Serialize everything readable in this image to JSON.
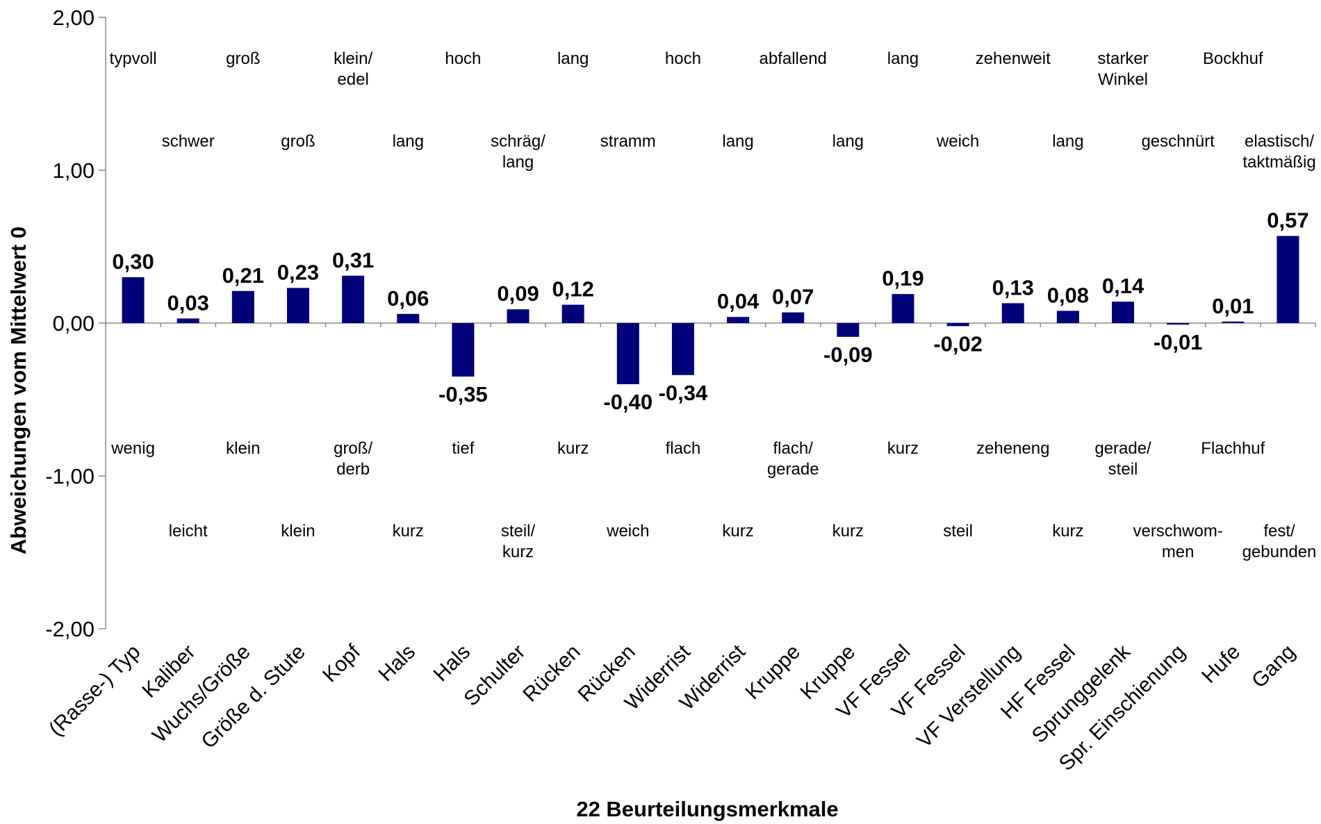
{
  "chart_data": {
    "type": "bar",
    "xlabel": "22 Beurteilungsmerkmale",
    "ylabel": "Abweichungen vom Mittelwert 0",
    "ylim": [
      -2,
      2
    ],
    "yticks": [
      "2,00",
      "1,00",
      "0,00",
      "-1,00",
      "-2,00"
    ],
    "bar_color": "#00007a",
    "categories": [
      "(Rasse-) Typ",
      "Kaliber",
      "Wuchs/Größe",
      "Größe d. Stute",
      "Kopf",
      "Hals",
      "Hals",
      "Schulter",
      "Rücken",
      "Rücken",
      "Widerrist",
      "Widerrist",
      "Kruppe",
      "Kruppe",
      "VF Fessel",
      "VF Fessel",
      "VF Verstellung",
      "HF Fessel",
      "Sprunggelenk",
      "Spr. Einschienung",
      "Hufe",
      "Gang"
    ],
    "values": [
      0.3,
      0.03,
      0.21,
      0.23,
      0.31,
      0.06,
      -0.35,
      0.09,
      0.12,
      -0.4,
      -0.34,
      0.04,
      0.07,
      -0.09,
      0.19,
      -0.02,
      0.13,
      0.08,
      0.14,
      -0.01,
      0.01,
      0.57
    ],
    "value_labels": [
      "0,30",
      "0,03",
      "0,21",
      "0,23",
      "0,31",
      "0,06",
      "-0,35",
      "0,09",
      "0,12",
      "-0,40",
      "-0,34",
      "0,04",
      "0,07",
      "-0,09",
      "0,19",
      "-0,02",
      "0,13",
      "0,08",
      "0,14",
      "-0,01",
      "0,01",
      "0,57"
    ],
    "upper_descriptors": [
      [
        "typvoll"
      ],
      [
        "schwer"
      ],
      [
        "groß"
      ],
      [
        "groß"
      ],
      [
        "klein/",
        "edel"
      ],
      [
        "lang"
      ],
      [
        "hoch"
      ],
      [
        "schräg/",
        "lang"
      ],
      [
        "lang"
      ],
      [
        "stramm"
      ],
      [
        "hoch"
      ],
      [
        "lang"
      ],
      [
        "abfallend"
      ],
      [
        "lang"
      ],
      [
        "lang"
      ],
      [
        "weich"
      ],
      [
        "zehenweit"
      ],
      [
        "lang"
      ],
      [
        "starker",
        "Winkel"
      ],
      [
        "geschnürt"
      ],
      [
        "Bockhuf"
      ],
      [
        "elastisch/",
        "taktmäßig"
      ]
    ],
    "lower_descriptors": [
      [
        "wenig"
      ],
      [
        "leicht"
      ],
      [
        "klein"
      ],
      [
        "klein"
      ],
      [
        "groß/",
        "derb"
      ],
      [
        "kurz"
      ],
      [
        "tief"
      ],
      [
        "steil/",
        "kurz"
      ],
      [
        "kurz"
      ],
      [
        "weich"
      ],
      [
        "flach"
      ],
      [
        "kurz"
      ],
      [
        "flach/",
        "gerade"
      ],
      [
        "kurz"
      ],
      [
        "kurz"
      ],
      [
        "steil"
      ],
      [
        "zeheneng"
      ],
      [
        "kurz"
      ],
      [
        "gerade/",
        "steil"
      ],
      [
        "verschwom-",
        "men"
      ],
      [
        "Flachhuf"
      ],
      [
        "fest/",
        "gebunden"
      ]
    ]
  }
}
